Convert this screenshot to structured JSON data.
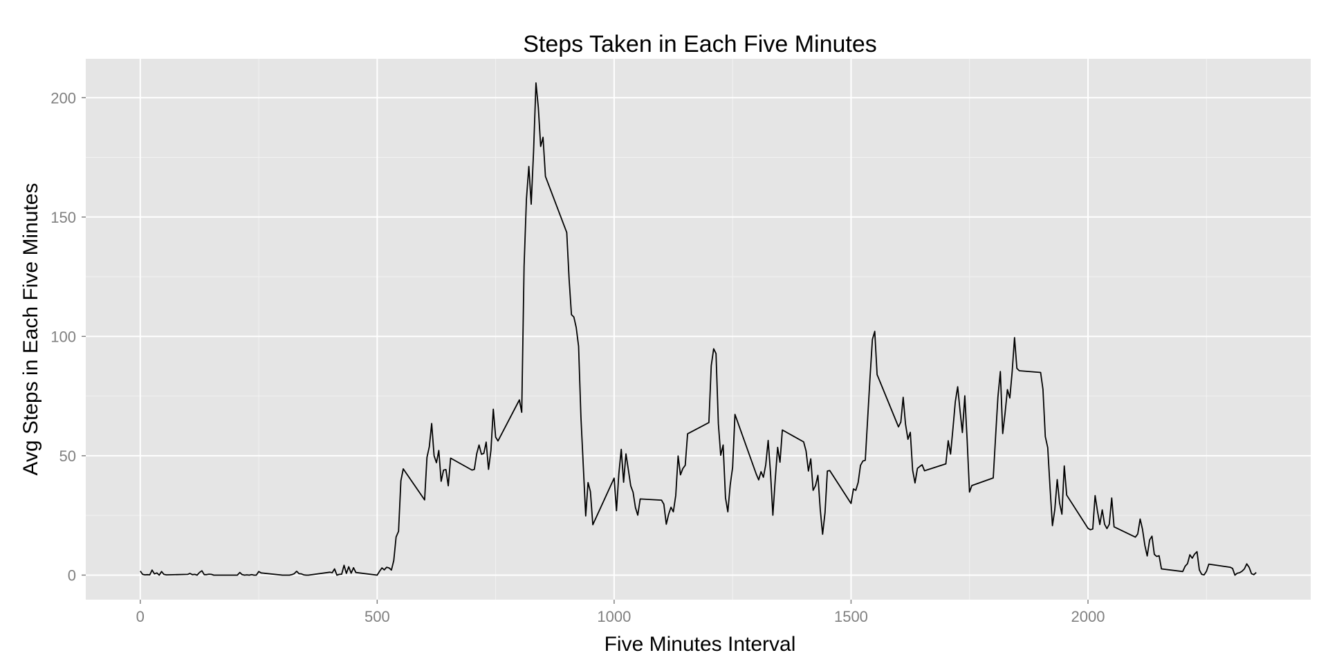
{
  "chart_data": {
    "type": "line",
    "title": "Steps Taken in Each Five Minutes",
    "xlabel": "Five Minutes Interval",
    "ylabel": "Avg Steps in Each Five Minutes",
    "xlim": [
      -115,
      2470
    ],
    "ylim": [
      -10.3,
      216.3
    ],
    "x_ticks": [
      0,
      500,
      1000,
      1500,
      2000
    ],
    "y_ticks": [
      0,
      50,
      100,
      150,
      200
    ],
    "x_tick_labels": [
      "0",
      "500",
      "1000",
      "1500",
      "2000"
    ],
    "y_tick_labels": [
      "0",
      "50",
      "100",
      "150",
      "200"
    ],
    "grid": true,
    "legend": "none",
    "colors": {
      "panel": "#e5e5e5",
      "grid_major": "#ffffff",
      "grid_minor": "#f2f2f2",
      "line": "#000000",
      "tick_text": "#7f7f7f"
    },
    "series": [
      {
        "points": [
          [
            0,
            1.7
          ],
          [
            5,
            0.3
          ],
          [
            10,
            0.1
          ],
          [
            15,
            0.2
          ],
          [
            20,
            0.1
          ],
          [
            25,
            2.1
          ],
          [
            30,
            0.5
          ],
          [
            35,
            0.9
          ],
          [
            40,
            0
          ],
          [
            45,
            1.5
          ],
          [
            50,
            0.3
          ],
          [
            55,
            0.1
          ],
          [
            100,
            0.3
          ],
          [
            105,
            0.7
          ],
          [
            110,
            0.2
          ],
          [
            115,
            0.3
          ],
          [
            120,
            0
          ],
          [
            125,
            1.1
          ],
          [
            130,
            1.8
          ],
          [
            135,
            0.2
          ],
          [
            140,
            0.2
          ],
          [
            145,
            0.4
          ],
          [
            150,
            0.3
          ],
          [
            155,
            0
          ],
          [
            200,
            0
          ],
          [
            205,
            0
          ],
          [
            210,
            1.1
          ],
          [
            215,
            0.2
          ],
          [
            220,
            0
          ],
          [
            225,
            0.1
          ],
          [
            230,
            0
          ],
          [
            235,
            0.2
          ],
          [
            240,
            0
          ],
          [
            245,
            0
          ],
          [
            250,
            1.5
          ],
          [
            255,
            0.9
          ],
          [
            300,
            0
          ],
          [
            305,
            0
          ],
          [
            310,
            0
          ],
          [
            315,
            0
          ],
          [
            320,
            0.2
          ],
          [
            325,
            0.6
          ],
          [
            330,
            1.6
          ],
          [
            335,
            0.6
          ],
          [
            340,
            0.5
          ],
          [
            345,
            0.1
          ],
          [
            350,
            0
          ],
          [
            355,
            0
          ],
          [
            400,
            1.2
          ],
          [
            405,
            1
          ],
          [
            410,
            2.6
          ],
          [
            415,
            0
          ],
          [
            420,
            0.3
          ],
          [
            425,
            0.4
          ],
          [
            430,
            4.1
          ],
          [
            435,
            0.7
          ],
          [
            440,
            3.5
          ],
          [
            445,
            0.8
          ],
          [
            450,
            3.1
          ],
          [
            455,
            1.1
          ],
          [
            500,
            0
          ],
          [
            505,
            1.6
          ],
          [
            510,
            3
          ],
          [
            515,
            2.2
          ],
          [
            520,
            3.3
          ],
          [
            525,
            3
          ],
          [
            530,
            2.1
          ],
          [
            535,
            6.1
          ],
          [
            540,
            16
          ],
          [
            545,
            18.3
          ],
          [
            550,
            39.5
          ],
          [
            555,
            44.5
          ],
          [
            600,
            31.5
          ],
          [
            605,
            49.3
          ],
          [
            610,
            53.8
          ],
          [
            615,
            63.5
          ],
          [
            620,
            50
          ],
          [
            625,
            47.1
          ],
          [
            630,
            52.2
          ],
          [
            635,
            39.3
          ],
          [
            640,
            44
          ],
          [
            645,
            44.2
          ],
          [
            650,
            37.4
          ],
          [
            655,
            49
          ],
          [
            700,
            44
          ],
          [
            705,
            44.3
          ],
          [
            710,
            50.8
          ],
          [
            715,
            54.5
          ],
          [
            720,
            50.6
          ],
          [
            725,
            51
          ],
          [
            730,
            55.7
          ],
          [
            735,
            44.3
          ],
          [
            740,
            52.3
          ],
          [
            745,
            69.5
          ],
          [
            750,
            57.8
          ],
          [
            755,
            56.2
          ],
          [
            800,
            73.4
          ],
          [
            805,
            68.2
          ],
          [
            810,
            129.4
          ],
          [
            815,
            157.5
          ],
          [
            820,
            171.2
          ],
          [
            825,
            155.4
          ],
          [
            830,
            177.3
          ],
          [
            835,
            206.2
          ],
          [
            840,
            195.9
          ],
          [
            845,
            179.6
          ],
          [
            850,
            183.4
          ],
          [
            855,
            167.0
          ],
          [
            900,
            143.5
          ],
          [
            905,
            124
          ],
          [
            910,
            109.1
          ],
          [
            915,
            108.1
          ],
          [
            920,
            103.7
          ],
          [
            925,
            95.9
          ],
          [
            930,
            66.2
          ],
          [
            935,
            45.2
          ],
          [
            940,
            24.8
          ],
          [
            945,
            38.8
          ],
          [
            950,
            34.98
          ],
          [
            955,
            21.1
          ],
          [
            1000,
            40.6
          ],
          [
            1005,
            27
          ],
          [
            1010,
            42.4
          ],
          [
            1015,
            52.7
          ],
          [
            1020,
            38.9
          ],
          [
            1025,
            50.8
          ],
          [
            1030,
            44.3
          ],
          [
            1035,
            37.4
          ],
          [
            1040,
            34.7
          ],
          [
            1045,
            28.3
          ],
          [
            1050,
            25.1
          ],
          [
            1055,
            31.9
          ],
          [
            1100,
            31.4
          ],
          [
            1105,
            29.7
          ],
          [
            1110,
            21.3
          ],
          [
            1115,
            25.5
          ],
          [
            1120,
            28.4
          ],
          [
            1125,
            26.5
          ],
          [
            1130,
            33.4
          ],
          [
            1135,
            49.9
          ],
          [
            1140,
            42
          ],
          [
            1145,
            44.6
          ],
          [
            1150,
            46
          ],
          [
            1155,
            59.2
          ],
          [
            1200,
            63.9
          ],
          [
            1205,
            87.7
          ],
          [
            1210,
            94.8
          ],
          [
            1215,
            92.8
          ],
          [
            1220,
            63.4
          ],
          [
            1225,
            50.2
          ],
          [
            1230,
            54.5
          ],
          [
            1235,
            32.4
          ],
          [
            1240,
            26.5
          ],
          [
            1245,
            37.7
          ],
          [
            1250,
            45.1
          ],
          [
            1255,
            67.3
          ],
          [
            1300,
            42.3
          ],
          [
            1305,
            39.9
          ],
          [
            1310,
            43.3
          ],
          [
            1315,
            40.98
          ],
          [
            1320,
            46.2
          ],
          [
            1325,
            56.4
          ],
          [
            1330,
            42.8
          ],
          [
            1335,
            25.1
          ],
          [
            1340,
            39.97
          ],
          [
            1345,
            53.5
          ],
          [
            1350,
            47.3
          ],
          [
            1355,
            60.8
          ],
          [
            1400,
            55.8
          ],
          [
            1405,
            51.96
          ],
          [
            1410,
            43.6
          ],
          [
            1415,
            48.7
          ],
          [
            1420,
            35.5
          ],
          [
            1425,
            37.5
          ],
          [
            1430,
            41.8
          ],
          [
            1435,
            27.5
          ],
          [
            1440,
            17.1
          ],
          [
            1445,
            26.1
          ],
          [
            1450,
            43.6
          ],
          [
            1455,
            43.8
          ],
          [
            1500,
            30
          ],
          [
            1505,
            36.1
          ],
          [
            1510,
            35.5
          ],
          [
            1515,
            38.8
          ],
          [
            1520,
            45.96
          ],
          [
            1525,
            47.8
          ],
          [
            1530,
            48.1
          ],
          [
            1535,
            65.3
          ],
          [
            1540,
            82.9
          ],
          [
            1545,
            98.7
          ],
          [
            1550,
            102.1
          ],
          [
            1555,
            84
          ],
          [
            1600,
            62.1
          ],
          [
            1605,
            64.1
          ],
          [
            1610,
            74.5
          ],
          [
            1615,
            63.2
          ],
          [
            1620,
            56.9
          ],
          [
            1625,
            59.8
          ],
          [
            1630,
            43.9
          ],
          [
            1635,
            38.6
          ],
          [
            1640,
            44.7
          ],
          [
            1645,
            45.5
          ],
          [
            1650,
            46.2
          ],
          [
            1655,
            43.7
          ],
          [
            1700,
            46.6
          ],
          [
            1705,
            56.3
          ],
          [
            1710,
            50.7
          ],
          [
            1715,
            61.2
          ],
          [
            1720,
            72.7
          ],
          [
            1725,
            78.9
          ],
          [
            1730,
            68.9
          ],
          [
            1735,
            59.7
          ],
          [
            1740,
            75.1
          ],
          [
            1745,
            56.5
          ],
          [
            1750,
            34.8
          ],
          [
            1755,
            37.5
          ],
          [
            1800,
            40.7
          ],
          [
            1805,
            58
          ],
          [
            1810,
            74.7
          ],
          [
            1815,
            85.3
          ],
          [
            1820,
            59.3
          ],
          [
            1825,
            67.8
          ],
          [
            1830,
            77.7
          ],
          [
            1835,
            74.2
          ],
          [
            1840,
            85.3
          ],
          [
            1845,
            99.5
          ],
          [
            1850,
            86.6
          ],
          [
            1855,
            85.6
          ],
          [
            1900,
            84.9
          ],
          [
            1905,
            77.8
          ],
          [
            1910,
            58
          ],
          [
            1915,
            53.4
          ],
          [
            1920,
            36.3
          ],
          [
            1925,
            20.7
          ],
          [
            1930,
            27.4
          ],
          [
            1935,
            40
          ],
          [
            1940,
            30.2
          ],
          [
            1945,
            25.5
          ],
          [
            1950,
            45.7
          ],
          [
            1955,
            33.5
          ],
          [
            2000,
            19.6
          ],
          [
            2005,
            19
          ],
          [
            2010,
            19.3
          ],
          [
            2015,
            33.3
          ],
          [
            2020,
            26.8
          ],
          [
            2025,
            21.2
          ],
          [
            2030,
            27.3
          ],
          [
            2035,
            21.3
          ],
          [
            2040,
            19.5
          ],
          [
            2045,
            21.3
          ],
          [
            2050,
            32.3
          ],
          [
            2055,
            20.2
          ],
          [
            2100,
            15.9
          ],
          [
            2105,
            17.2
          ],
          [
            2110,
            23.5
          ],
          [
            2115,
            19.2
          ],
          [
            2120,
            12.5
          ],
          [
            2125,
            8
          ],
          [
            2130,
            14.7
          ],
          [
            2135,
            16.3
          ],
          [
            2140,
            8.7
          ],
          [
            2145,
            7.8
          ],
          [
            2150,
            8.1
          ],
          [
            2155,
            2.6
          ],
          [
            2200,
            1.5
          ],
          [
            2205,
            3.7
          ],
          [
            2210,
            4.8
          ],
          [
            2215,
            8.5
          ],
          [
            2220,
            7.1
          ],
          [
            2225,
            8.8
          ],
          [
            2230,
            9.8
          ],
          [
            2235,
            2.2
          ],
          [
            2240,
            0.3
          ],
          [
            2245,
            0.1
          ],
          [
            2250,
            1.6
          ],
          [
            2255,
            4.6
          ],
          [
            2300,
            3.3
          ],
          [
            2305,
            2.8
          ],
          [
            2310,
            0
          ],
          [
            2315,
            0.8
          ],
          [
            2320,
            1
          ],
          [
            2325,
            1.6
          ],
          [
            2330,
            2.6
          ],
          [
            2335,
            4.7
          ],
          [
            2340,
            3.3
          ],
          [
            2345,
            0.6
          ],
          [
            2350,
            0.2
          ],
          [
            2355,
            1.1
          ]
        ]
      }
    ]
  }
}
